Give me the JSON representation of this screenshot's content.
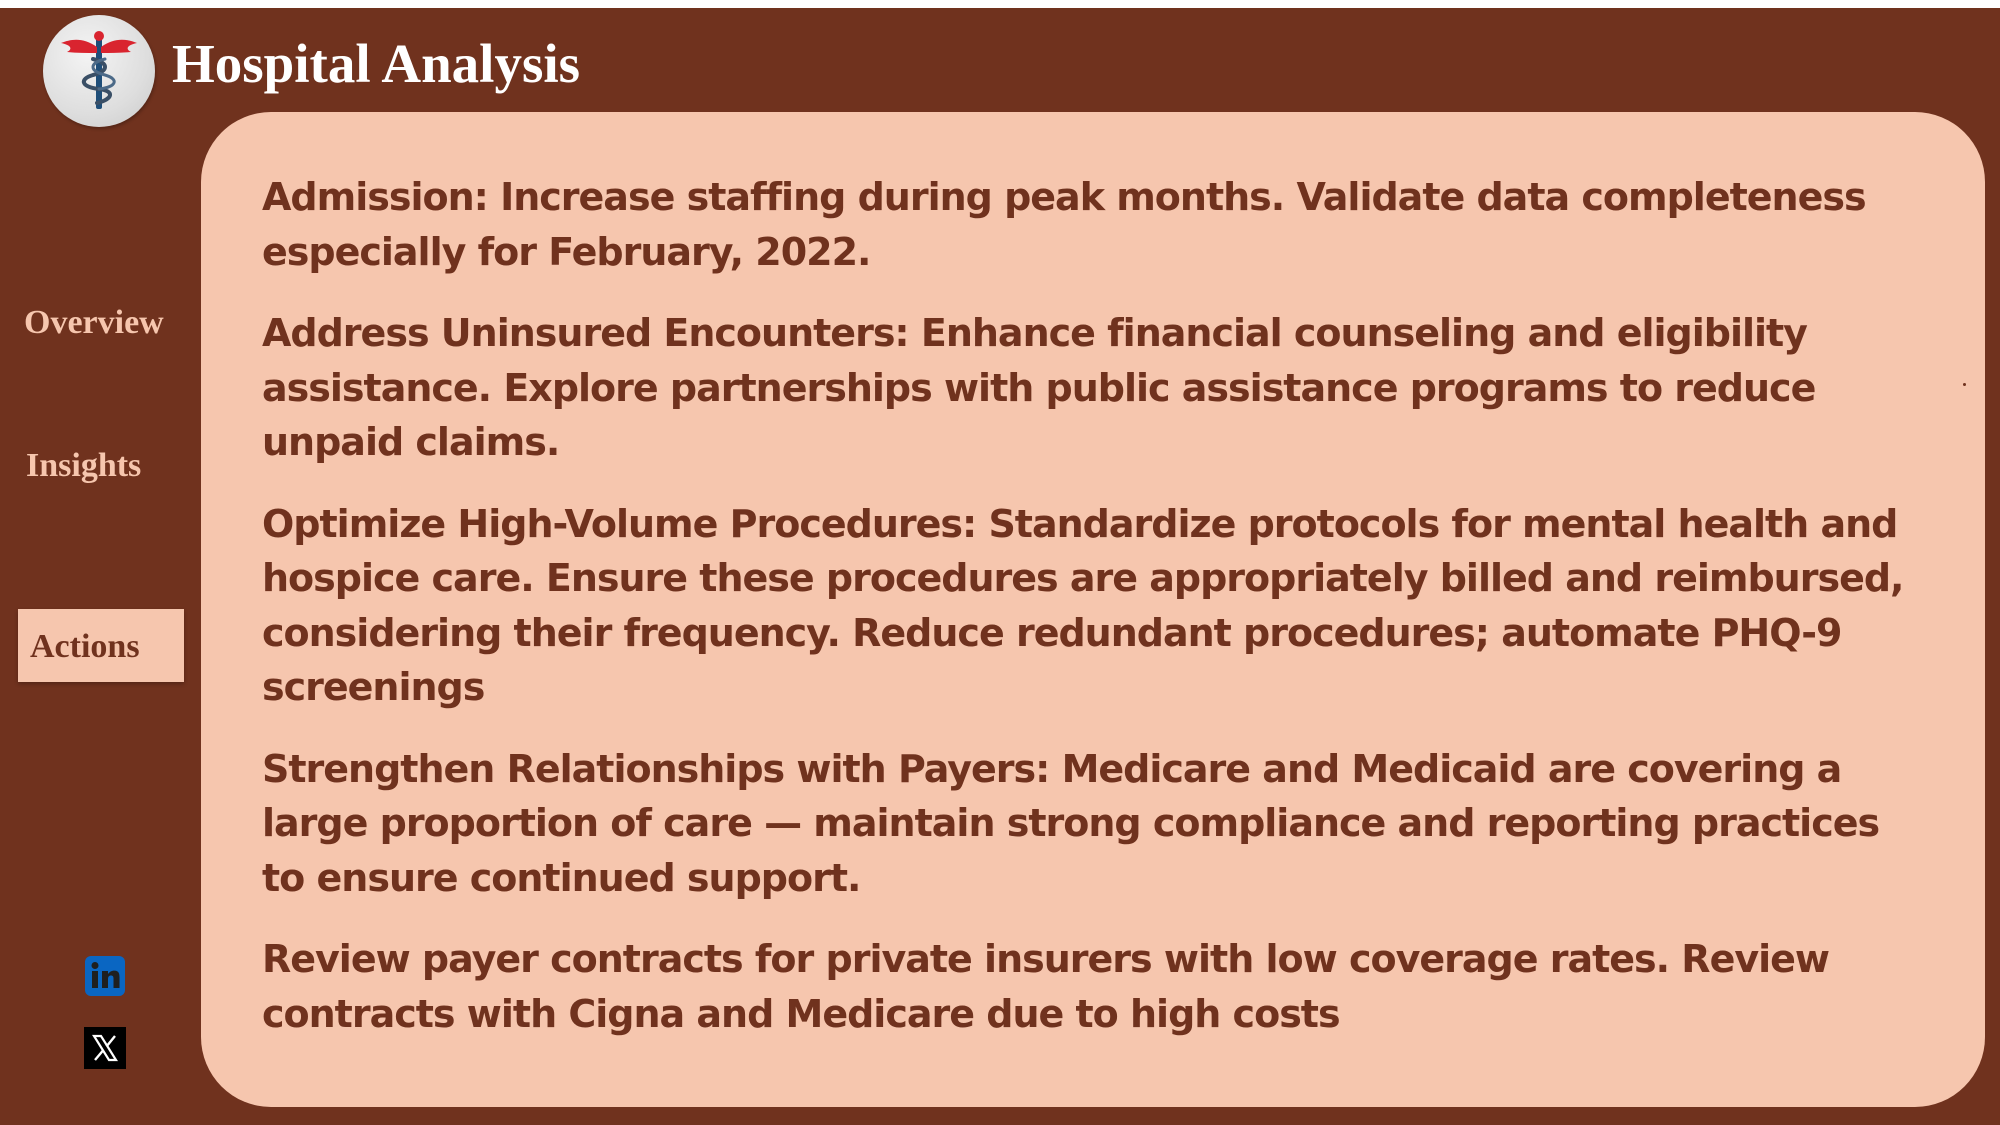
{
  "app": {
    "title": "Hospital Analysis"
  },
  "colors": {
    "background": "#70321e",
    "panel": "#f6c6ae",
    "title_text": "#ffffff",
    "accent_red": "#d9242f",
    "staff_blue": "#1f4e79"
  },
  "logo": {
    "icon": "caduceus-icon"
  },
  "nav": {
    "items": [
      {
        "label": "Overview",
        "active": false
      },
      {
        "label": "Insights",
        "active": false
      },
      {
        "label": "Actions",
        "active": true
      }
    ]
  },
  "social": [
    {
      "icon": "linkedin-icon"
    },
    {
      "icon": "x-twitter-icon"
    }
  ],
  "content": {
    "paragraphs": [
      "Admission: Increase staffing during peak months. Validate data completeness especially for February, 2022.",
      "Address Uninsured Encounters: Enhance financial counseling and eligibility assistance. Explore partnerships with public assistance programs to reduce unpaid claims.",
      "Optimize High-Volume Procedures: Standardize protocols for mental health and hospice care. Ensure these procedures are appropriately billed and reimbursed, considering their frequency. Reduce redundant procedures; automate PHQ-9 screenings",
      "Strengthen Relationships with Payers: Medicare and Medicaid are covering a large proportion of care — maintain strong compliance and reporting practices to ensure continued support.",
      "Review payer contracts for private insurers with low coverage rates. Review contracts with Cigna and Medicare due to high costs"
    ]
  }
}
